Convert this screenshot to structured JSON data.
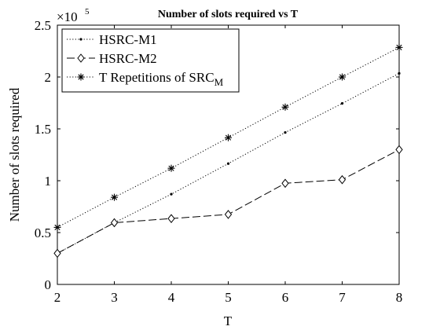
{
  "chart_data": {
    "type": "line",
    "title": "Number of slots required vs T",
    "xlabel": "T",
    "ylabel": "Number of slots required",
    "exponent_base": "×10",
    "exponent_power": "5",
    "x": [
      2,
      3,
      4,
      5,
      6,
      7,
      8
    ],
    "xlim": [
      2,
      8
    ],
    "ylim": [
      0,
      2.5
    ],
    "y_scale": 100000,
    "x_ticks": [
      "2",
      "3",
      "4",
      "5",
      "6",
      "7",
      "8"
    ],
    "y_ticks": [
      {
        "value": 0,
        "label": "0"
      },
      {
        "value": 0.5,
        "label": "0.5"
      },
      {
        "value": 1,
        "label": "1"
      },
      {
        "value": 1.5,
        "label": "1.5"
      },
      {
        "value": 2,
        "label": "2"
      },
      {
        "value": 2.5,
        "label": "2.5"
      }
    ],
    "grid": false,
    "legend_position": "top-left",
    "series": [
      {
        "name": "HSRC-M1",
        "line_style": "dotted",
        "marker": "dot",
        "values": [
          0.3,
          0.595,
          0.87,
          1.165,
          1.465,
          1.745,
          2.035
        ]
      },
      {
        "name": "HSRC-M2",
        "line_style": "dashed",
        "marker": "diamond",
        "values": [
          0.3,
          0.595,
          0.635,
          0.675,
          0.975,
          1.01,
          1.3
        ]
      },
      {
        "name": "T Repetitions of SRC",
        "name_subscript": "M",
        "line_style": "dotted",
        "marker": "asterisk",
        "values": [
          0.55,
          0.84,
          1.12,
          1.415,
          1.71,
          2.0,
          2.285
        ]
      }
    ]
  }
}
